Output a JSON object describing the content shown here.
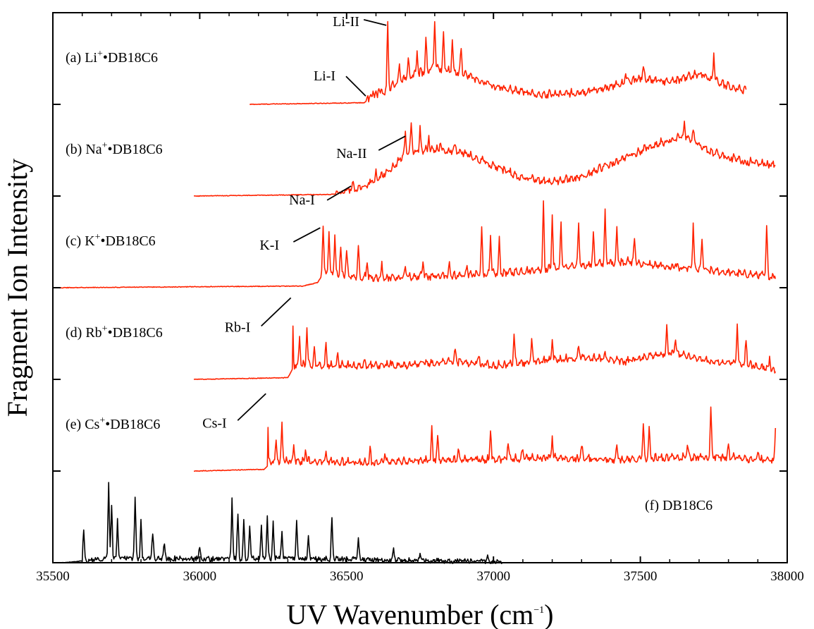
{
  "chart_data": {
    "type": "line",
    "xlabel": "UV Wavenumber (cm",
    "xlabel_sup": "−1",
    "xlabel_close": ")",
    "ylabel": "Fragment Ion Intensity",
    "xlim": [
      35500,
      38000
    ],
    "x_ticks": [
      35500,
      36000,
      36500,
      37000,
      37500,
      38000
    ],
    "stacked_panels": 6,
    "grid": false,
    "colors": {
      "cation_complexes": "#ff2200",
      "neutral": "#000000"
    },
    "series": [
      {
        "name": "(a) Li+•DB18C6",
        "label_prefix": "(a) Li",
        "label_sup": "+",
        "label_suffix": "•DB18C6",
        "color": "#ff2200",
        "panel": 0,
        "x_start": 36170,
        "x_end": 37860,
        "onset": 36560,
        "envelope": [
          [
            36170,
            0
          ],
          [
            36560,
            0.02
          ],
          [
            36620,
            0.12
          ],
          [
            36700,
            0.3
          ],
          [
            36800,
            0.42
          ],
          [
            36900,
            0.35
          ],
          [
            37000,
            0.2
          ],
          [
            37150,
            0.1
          ],
          [
            37300,
            0.12
          ],
          [
            37400,
            0.2
          ],
          [
            37500,
            0.3
          ],
          [
            37600,
            0.25
          ],
          [
            37700,
            0.35
          ],
          [
            37800,
            0.2
          ],
          [
            37860,
            0.15
          ]
        ],
        "peaks": [
          [
            36570,
            0.1
          ],
          [
            36590,
            0.15
          ],
          [
            36610,
            0.2
          ],
          [
            36640,
            0.95
          ],
          [
            36680,
            0.45
          ],
          [
            36710,
            0.55
          ],
          [
            36740,
            0.65
          ],
          [
            36770,
            0.75
          ],
          [
            36800,
            1.0
          ],
          [
            36830,
            0.85
          ],
          [
            36860,
            0.8
          ],
          [
            36890,
            0.7
          ],
          [
            37450,
            0.35
          ],
          [
            37510,
            0.45
          ],
          [
            37750,
            0.6
          ]
        ]
      },
      {
        "name": "(b) Na+•DB18C6",
        "label_prefix": "(b) Na",
        "label_sup": "+",
        "label_suffix": "•DB18C6",
        "color": "#ff2200",
        "panel": 1,
        "x_start": 35980,
        "x_end": 37960,
        "onset": 36460,
        "envelope": [
          [
            35980,
            0
          ],
          [
            36460,
            0.02
          ],
          [
            36560,
            0.1
          ],
          [
            36650,
            0.3
          ],
          [
            36700,
            0.5
          ],
          [
            36800,
            0.55
          ],
          [
            36900,
            0.5
          ],
          [
            37000,
            0.35
          ],
          [
            37100,
            0.2
          ],
          [
            37200,
            0.15
          ],
          [
            37300,
            0.22
          ],
          [
            37450,
            0.45
          ],
          [
            37550,
            0.6
          ],
          [
            37650,
            0.7
          ],
          [
            37750,
            0.5
          ],
          [
            37850,
            0.4
          ],
          [
            37960,
            0.35
          ]
        ],
        "peaks": [
          [
            36520,
            0.12
          ],
          [
            36600,
            0.25
          ],
          [
            36700,
            0.75
          ],
          [
            36720,
            0.9
          ],
          [
            36750,
            0.8
          ],
          [
            36780,
            0.7
          ],
          [
            36820,
            0.65
          ],
          [
            36870,
            0.6
          ],
          [
            37650,
            0.85
          ],
          [
            37680,
            0.8
          ]
        ]
      },
      {
        "name": "(c) K+•DB18C6",
        "label_prefix": "(c) K",
        "label_sup": "+",
        "label_suffix": "•DB18C6",
        "color": "#ff2200",
        "panel": 2,
        "x_start": 35520,
        "x_end": 37960,
        "onset": 36410,
        "envelope": [
          [
            35520,
            0
          ],
          [
            36350,
            0.02
          ],
          [
            36400,
            0.06
          ],
          [
            36420,
            0.15
          ],
          [
            36600,
            0.1
          ],
          [
            36800,
            0.12
          ],
          [
            37000,
            0.15
          ],
          [
            37150,
            0.2
          ],
          [
            37300,
            0.25
          ],
          [
            37450,
            0.3
          ],
          [
            37550,
            0.25
          ],
          [
            37700,
            0.2
          ],
          [
            37850,
            0.15
          ],
          [
            37960,
            0.12
          ]
        ],
        "peaks": [
          [
            36420,
            0.75
          ],
          [
            36440,
            0.7
          ],
          [
            36460,
            0.65
          ],
          [
            36480,
            0.5
          ],
          [
            36500,
            0.45
          ],
          [
            36540,
            0.5
          ],
          [
            36570,
            0.3
          ],
          [
            36620,
            0.25
          ],
          [
            36700,
            0.25
          ],
          [
            36760,
            0.3
          ],
          [
            36850,
            0.3
          ],
          [
            36910,
            0.25
          ],
          [
            36960,
            0.7
          ],
          [
            36990,
            0.6
          ],
          [
            37020,
            0.55
          ],
          [
            37170,
            1.0
          ],
          [
            37200,
            0.85
          ],
          [
            37230,
            0.75
          ],
          [
            37290,
            0.75
          ],
          [
            37340,
            0.65
          ],
          [
            37380,
            0.9
          ],
          [
            37420,
            0.7
          ],
          [
            37480,
            0.6
          ],
          [
            37620,
            0.3
          ],
          [
            37680,
            0.75
          ],
          [
            37710,
            0.6
          ],
          [
            37930,
            0.7
          ]
        ]
      },
      {
        "name": "(d) Rb+•DB18C6",
        "label_prefix": "(d) Rb",
        "label_sup": "+",
        "label_suffix": "•DB18C6",
        "color": "#ff2200",
        "panel": 3,
        "x_start": 35980,
        "x_end": 37960,
        "onset": 36315,
        "envelope": [
          [
            35980,
            0
          ],
          [
            36300,
            0.02
          ],
          [
            36320,
            0.15
          ],
          [
            36500,
            0.15
          ],
          [
            36700,
            0.15
          ],
          [
            36850,
            0.2
          ],
          [
            37000,
            0.15
          ],
          [
            37150,
            0.2
          ],
          [
            37300,
            0.25
          ],
          [
            37450,
            0.2
          ],
          [
            37600,
            0.3
          ],
          [
            37750,
            0.2
          ],
          [
            37900,
            0.15
          ],
          [
            37960,
            0.1
          ]
        ],
        "peaks": [
          [
            36315,
            1.0
          ],
          [
            36340,
            0.5
          ],
          [
            36365,
            0.6
          ],
          [
            36390,
            0.35
          ],
          [
            36430,
            0.4
          ],
          [
            36470,
            0.3
          ],
          [
            36560,
            0.2
          ],
          [
            36650,
            0.2
          ],
          [
            36760,
            0.2
          ],
          [
            36870,
            0.35
          ],
          [
            36950,
            0.3
          ],
          [
            37070,
            0.55
          ],
          [
            37130,
            0.45
          ],
          [
            37200,
            0.45
          ],
          [
            37290,
            0.4
          ],
          [
            37380,
            0.3
          ],
          [
            37590,
            0.6
          ],
          [
            37620,
            0.5
          ],
          [
            37830,
            0.65
          ],
          [
            37860,
            0.45
          ],
          [
            37940,
            0.25
          ]
        ]
      },
      {
        "name": "(e) Cs+•DB18C6",
        "label_prefix": "(e) Cs",
        "label_sup": "+",
        "label_suffix": "•DB18C6",
        "color": "#ff2200",
        "panel": 4,
        "x_start": 35980,
        "x_end": 37960,
        "onset": 36230,
        "envelope": [
          [
            35980,
            0
          ],
          [
            36220,
            0.02
          ],
          [
            36240,
            0.1
          ],
          [
            36400,
            0.1
          ],
          [
            36600,
            0.08
          ],
          [
            36800,
            0.12
          ],
          [
            37000,
            0.12
          ],
          [
            37200,
            0.15
          ],
          [
            37400,
            0.12
          ],
          [
            37600,
            0.15
          ],
          [
            37800,
            0.15
          ],
          [
            37960,
            0.1
          ]
        ],
        "peaks": [
          [
            36230,
            0.95
          ],
          [
            36260,
            0.35
          ],
          [
            36280,
            0.55
          ],
          [
            36320,
            0.3
          ],
          [
            36360,
            0.25
          ],
          [
            36430,
            0.2
          ],
          [
            36580,
            0.25
          ],
          [
            36630,
            0.2
          ],
          [
            36790,
            0.5
          ],
          [
            36810,
            0.4
          ],
          [
            36880,
            0.25
          ],
          [
            36990,
            0.5
          ],
          [
            37050,
            0.35
          ],
          [
            37100,
            0.25
          ],
          [
            37200,
            0.4
          ],
          [
            37300,
            0.3
          ],
          [
            37420,
            0.25
          ],
          [
            37510,
            0.55
          ],
          [
            37530,
            0.5
          ],
          [
            37660,
            0.3
          ],
          [
            37740,
            0.75
          ],
          [
            37800,
            0.25
          ],
          [
            37900,
            0.25
          ],
          [
            37960,
            0.5
          ]
        ]
      },
      {
        "name": "(f) DB18C6",
        "label_prefix": "(f) DB18C6",
        "label_sup": "",
        "label_suffix": "",
        "color": "#000000",
        "panel": 5,
        "x_start": 35530,
        "x_end": 37030,
        "onset": 35600,
        "envelope": [
          [
            35530,
            0
          ],
          [
            35600,
            0.02
          ],
          [
            35700,
            0.05
          ],
          [
            36000,
            0.04
          ],
          [
            36300,
            0.05
          ],
          [
            36600,
            0.03
          ],
          [
            37030,
            0.01
          ]
        ],
        "peaks": [
          [
            35605,
            0.4
          ],
          [
            35690,
            0.95
          ],
          [
            35700,
            0.7
          ],
          [
            35720,
            0.5
          ],
          [
            35780,
            0.8
          ],
          [
            35800,
            0.5
          ],
          [
            35840,
            0.35
          ],
          [
            35880,
            0.25
          ],
          [
            36000,
            0.2
          ],
          [
            36110,
            0.75
          ],
          [
            36130,
            0.6
          ],
          [
            36150,
            0.5
          ],
          [
            36170,
            0.45
          ],
          [
            36210,
            0.45
          ],
          [
            36230,
            0.55
          ],
          [
            36250,
            0.5
          ],
          [
            36280,
            0.35
          ],
          [
            36330,
            0.5
          ],
          [
            36370,
            0.3
          ],
          [
            36450,
            0.55
          ],
          [
            36540,
            0.3
          ],
          [
            36660,
            0.15
          ],
          [
            36750,
            0.08
          ],
          [
            36980,
            0.06
          ]
        ]
      }
    ],
    "annotations": [
      {
        "text": "Li-II",
        "panel": 0,
        "x": 36640,
        "peak": 0.95
      },
      {
        "text": "Li-I",
        "panel": 0,
        "x": 36570,
        "peak": 0.1
      },
      {
        "text": "Na-II",
        "panel": 1,
        "x": 36705,
        "peak": 0.72
      },
      {
        "text": "Na-I",
        "panel": 1,
        "x": 36520,
        "peak": 0.12
      },
      {
        "text": "K-I",
        "panel": 2,
        "x": 36415,
        "peak": 0.72
      },
      {
        "text": "Rb-I",
        "panel": 3,
        "x": 36315,
        "peak": 0.98
      },
      {
        "text": "Cs-I",
        "panel": 4,
        "x": 36230,
        "peak": 0.93
      }
    ]
  }
}
